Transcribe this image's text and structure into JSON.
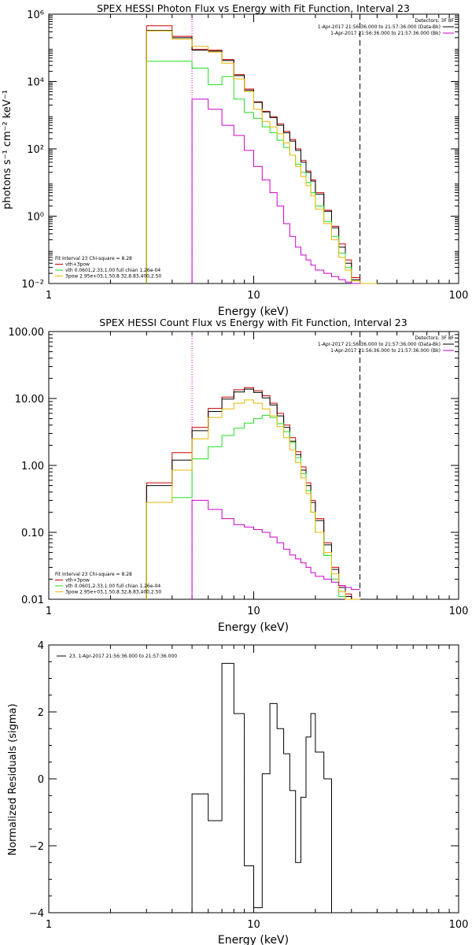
{
  "colors": {
    "black": "#000000",
    "red": "#cc0000",
    "green": "#22dd22",
    "gold": "#e6b800",
    "magenta": "#cc00cc"
  },
  "chart_data": [
    {
      "type": "line",
      "title": "SPEX HESSI Photon Flux vs Energy with Fit Function, Interval 23",
      "xlabel": "Energy (keV)",
      "ylabel": "photons s⁻¹ cm⁻² keV⁻¹",
      "xscale": "log",
      "yscale": "log",
      "xlim": [
        1,
        100
      ],
      "ylim": [
        0.01,
        1000000
      ],
      "x_ticks": [
        1,
        10,
        100
      ],
      "x_tick_labels": [
        "1",
        "10",
        "100"
      ],
      "y_ticks": [
        0.01,
        1,
        100,
        10000,
        1000000
      ],
      "y_tick_labels": [
        "10⁻²",
        "10⁰",
        "10²",
        "10⁴",
        "10⁶"
      ],
      "marker_lines": [
        {
          "x": 5,
          "style": "dotted",
          "color": "magenta"
        },
        {
          "x": 33,
          "style": "dashed",
          "color": "black"
        }
      ],
      "legend_top_right": {
        "header": "Detectors: 3F 8F",
        "items": [
          {
            "label": "1-Apr-2017 21:56:36.000 to 21:57:36.000 (Data-Bk)",
            "color": "black"
          },
          {
            "label": "1-Apr-2017 21:56:36.000 to 21:57:36.000 (Bk)",
            "color": "magenta"
          }
        ]
      },
      "legend_bottom_left": {
        "header": "Fit Interval 23   Chi-square = 8.28",
        "items": [
          {
            "label": "vth+3pow",
            "color": "red"
          },
          {
            "label": "vth 0.0601,2.33,1.00   full chian 1.26e-04",
            "color": "green"
          },
          {
            "label": "3pow 2.95e+03,1.50,8.32,8.83,400,2.50",
            "color": "gold"
          }
        ]
      },
      "edges": [
        3,
        4,
        5,
        6,
        7,
        8,
        9,
        10,
        11,
        12,
        13,
        14,
        15,
        16,
        17,
        18,
        19,
        20,
        22,
        24,
        26,
        28,
        30,
        33,
        36,
        40
      ],
      "series": [
        {
          "name": "vth+3pow",
          "color": "red",
          "values": [
            450000,
            220000,
            90000,
            85000,
            45000,
            16000,
            6000,
            2500,
            1300,
            900,
            550,
            330,
            190,
            100,
            45,
            22,
            12,
            5,
            1.5,
            0.5,
            0.15,
            0.05,
            0.015,
            0.01,
            0.005
          ]
        },
        {
          "name": "Data-Bk",
          "color": "black",
          "values": [
            330000,
            200000,
            85000,
            80000,
            42000,
            15000,
            5500,
            2400,
            1250,
            850,
            500,
            300,
            170,
            90,
            40,
            20,
            11,
            4.5,
            1.4,
            0.45,
            0.12,
            0.04,
            0.013,
            0.008,
            0.005
          ]
        },
        {
          "name": "vth",
          "color": "green",
          "values": [
            40000,
            40000,
            25000,
            8000,
            14000,
            3000,
            1200,
            800,
            450,
            300,
            180,
            110,
            65,
            35,
            20,
            10,
            5,
            2,
            0.7,
            0.25,
            0.08,
            0.03,
            0.01,
            0.005,
            0.005
          ]
        },
        {
          "name": "3pow",
          "color": "gold",
          "values": [
            320000,
            180000,
            110000,
            75000,
            35000,
            12000,
            5000,
            1500,
            650,
            450,
            280,
            150,
            65,
            30,
            15,
            8,
            4,
            1.6,
            0.6,
            0.2,
            0.06,
            0.025,
            0.012,
            0.008,
            0.005
          ]
        },
        {
          "name": "Bk",
          "color": "magenta",
          "values": [
            null,
            null,
            3000,
            1500,
            500,
            250,
            90,
            30,
            12,
            5,
            2,
            0.6,
            0.25,
            0.12,
            0.07,
            0.05,
            0.035,
            0.025,
            0.02,
            0.016,
            0.013,
            0.011,
            0.009,
            null,
            null
          ]
        }
      ]
    },
    {
      "type": "line",
      "title": "SPEX HESSI Count Flux vs Energy with Fit Function, Interval 23",
      "xlabel": "Energy (keV)",
      "ylabel": "",
      "xscale": "log",
      "yscale": "log",
      "xlim": [
        1,
        100
      ],
      "ylim": [
        0.01,
        100
      ],
      "x_ticks": [
        1,
        10,
        100
      ],
      "x_tick_labels": [
        "1",
        "10",
        "100"
      ],
      "y_ticks": [
        0.01,
        0.1,
        1,
        10,
        100
      ],
      "y_tick_labels": [
        "0.01",
        "0.10",
        "1.00",
        "10.00",
        "100.00"
      ],
      "marker_lines": [
        {
          "x": 5,
          "style": "dotted",
          "color": "magenta"
        },
        {
          "x": 33,
          "style": "dashed",
          "color": "black"
        }
      ],
      "legend_top_right": {
        "header": "Detectors: 3F 8F",
        "items": [
          {
            "label": "1-Apr-2017 21:56:36.000 to 21:57:36.000 (Data-Bk)",
            "color": "black"
          },
          {
            "label": "1-Apr-2017 21:56:36.000 to 21:57:36.000 (Bk)",
            "color": "magenta"
          }
        ]
      },
      "legend_bottom_left": {
        "header": "Fit Interval 23   Chi-square = 8.28",
        "items": [
          {
            "label": "vth+3pow",
            "color": "red"
          },
          {
            "label": "vth 0.0601,2.33,1.00   full chian 1.26e-04",
            "color": "green"
          },
          {
            "label": "3pow 2.95e+03,1.50,8.32,8.83,400,2.50",
            "color": "gold"
          }
        ]
      },
      "edges": [
        3,
        4,
        5,
        6,
        7,
        8,
        9,
        10,
        11,
        12,
        13,
        14,
        15,
        16,
        17,
        18,
        19,
        20,
        22,
        24,
        26,
        28,
        30,
        33
      ],
      "series": [
        {
          "name": "vth+3pow",
          "color": "red",
          "values": [
            0.55,
            1.55,
            3.7,
            7.1,
            10.5,
            13.5,
            14.5,
            13.0,
            11.0,
            8.5,
            6.0,
            4.0,
            2.6,
            1.6,
            0.95,
            0.55,
            0.3,
            0.16,
            0.07,
            0.03,
            0.016,
            0.012,
            0.01
          ]
        },
        {
          "name": "Data-Bk",
          "color": "black",
          "values": [
            0.5,
            1.2,
            3.3,
            6.4,
            9.8,
            12.5,
            13.8,
            12.3,
            10.2,
            8.0,
            5.5,
            3.7,
            2.3,
            1.45,
            0.85,
            0.5,
            0.28,
            0.15,
            0.065,
            0.028,
            0.015,
            0.011,
            0.01
          ]
        },
        {
          "name": "vth",
          "color": "green",
          "values": [
            0.28,
            0.33,
            1.25,
            1.9,
            2.8,
            3.6,
            4.3,
            5.0,
            5.6,
            5.2,
            4.2,
            3.2,
            2.2,
            1.3,
            0.75,
            0.42,
            0.2,
            0.1,
            0.045,
            0.02,
            0.011,
            0.01,
            0.01
          ]
        },
        {
          "name": "3pow",
          "color": "gold",
          "values": [
            0.28,
            0.85,
            2.5,
            5.2,
            7.0,
            8.5,
            9.5,
            8.5,
            7.0,
            5.5,
            3.8,
            2.6,
            1.7,
            1.1,
            0.65,
            0.38,
            0.2,
            0.1,
            0.05,
            0.024,
            0.013,
            0.01,
            0.01
          ]
        },
        {
          "name": "Bk",
          "color": "magenta",
          "values": [
            null,
            null,
            0.3,
            0.22,
            0.16,
            0.13,
            0.12,
            0.11,
            0.1,
            0.085,
            0.07,
            0.056,
            0.046,
            0.04,
            0.035,
            0.03,
            0.025,
            0.022,
            0.02,
            0.018,
            0.016,
            0.015,
            0.014
          ]
        }
      ]
    },
    {
      "type": "line",
      "title": "",
      "xlabel": "Energy (keV)",
      "ylabel": "Normalized Residuals (sigma)",
      "xscale": "log",
      "yscale": "linear",
      "xlim": [
        1,
        100
      ],
      "ylim": [
        -4,
        4
      ],
      "x_ticks": [
        1,
        10,
        100
      ],
      "x_tick_labels": [
        "1",
        "10",
        "100"
      ],
      "y_ticks": [
        -4,
        -2,
        0,
        2,
        4
      ],
      "y_tick_labels": [
        "−4",
        "−2",
        "0",
        "2",
        "4"
      ],
      "legend_top_left": {
        "items": [
          {
            "label": "23.  1-Apr-2017 21:56:36.000 to 21:57:36.000",
            "color": "black"
          }
        ]
      },
      "edges": [
        5,
        6,
        7,
        8,
        9,
        10,
        11,
        12,
        13,
        14,
        15,
        16,
        17,
        18,
        19,
        20,
        22,
        24,
        26,
        28,
        30,
        33
      ],
      "series": [
        {
          "name": "23.  1-Apr-2017 21:56:36.000 to 21:57:36.000",
          "color": "black",
          "values": [
            -0.45,
            -1.25,
            3.45,
            1.95,
            -2.6,
            -3.85,
            0.15,
            2.25,
            1.5,
            0.75,
            -0.35,
            -2.5,
            -0.55,
            1.25,
            1.95,
            0.8,
            0.0,
            -4.0,
            -4.0,
            -4.0,
            -4.0
          ]
        }
      ]
    }
  ]
}
